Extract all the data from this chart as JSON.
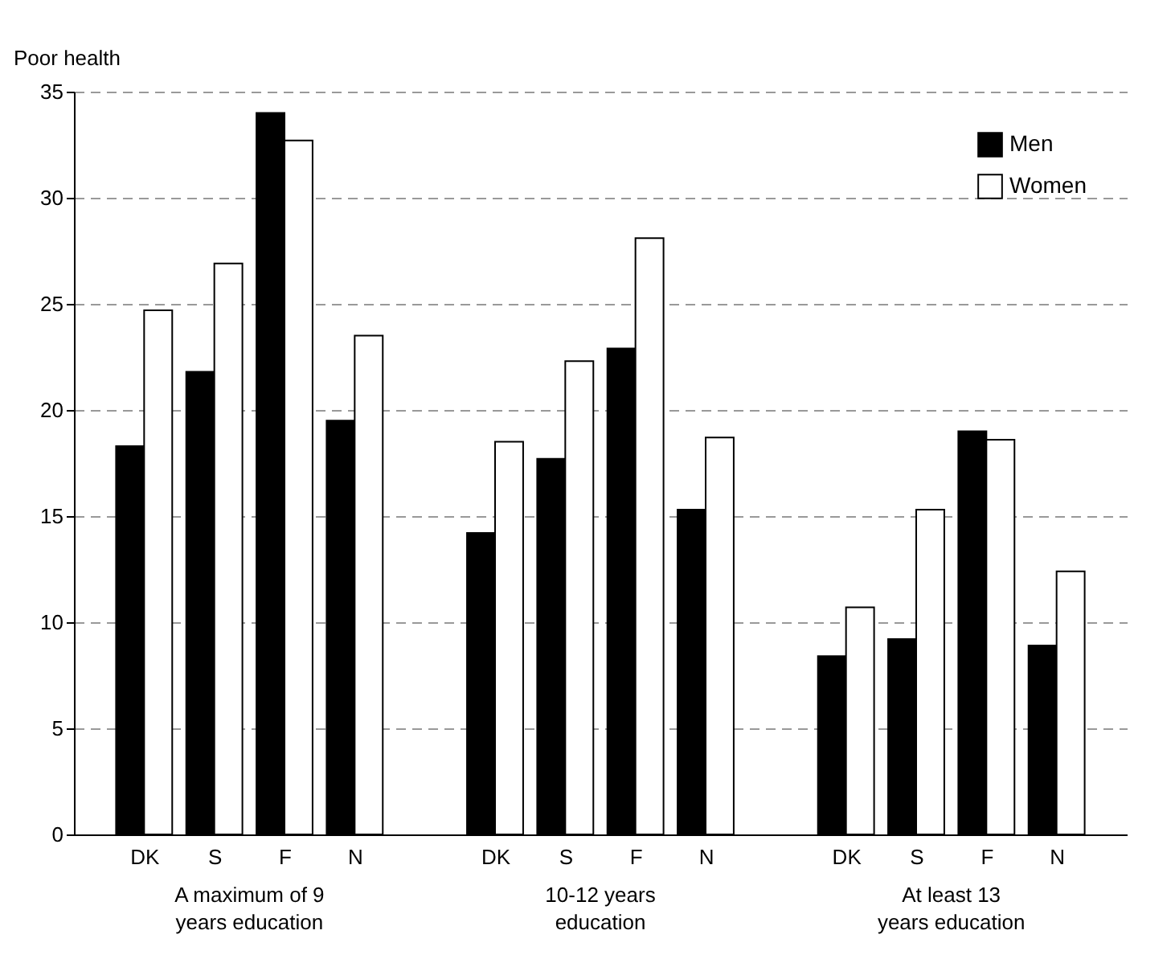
{
  "chart_data": {
    "type": "bar",
    "ylabel": "Poor health",
    "categories": [
      "DK",
      "S",
      "F",
      "N",
      "DK",
      "S",
      "F",
      "N",
      "DK",
      "S",
      "F",
      "N"
    ],
    "ylim": [
      0,
      35
    ],
    "yticks": [
      0,
      5,
      10,
      15,
      20,
      25,
      30,
      35
    ],
    "grid": "y",
    "legend": "top right",
    "annotations": [
      "A maximum of 9 years education",
      "10-12 years education",
      "At least 13 years education"
    ],
    "series": [
      {
        "name": "Men",
        "color": "#000000",
        "values": [
          18.3,
          21.8,
          34.0,
          19.5,
          14.2,
          17.7,
          22.9,
          15.3,
          8.4,
          9.2,
          19.0,
          8.9
        ]
      },
      {
        "name": "Women",
        "color": "#ffffff",
        "values": [
          24.7,
          26.9,
          32.7,
          23.5,
          18.5,
          22.3,
          28.1,
          18.7,
          10.7,
          15.3,
          18.6,
          12.4
        ]
      }
    ]
  }
}
